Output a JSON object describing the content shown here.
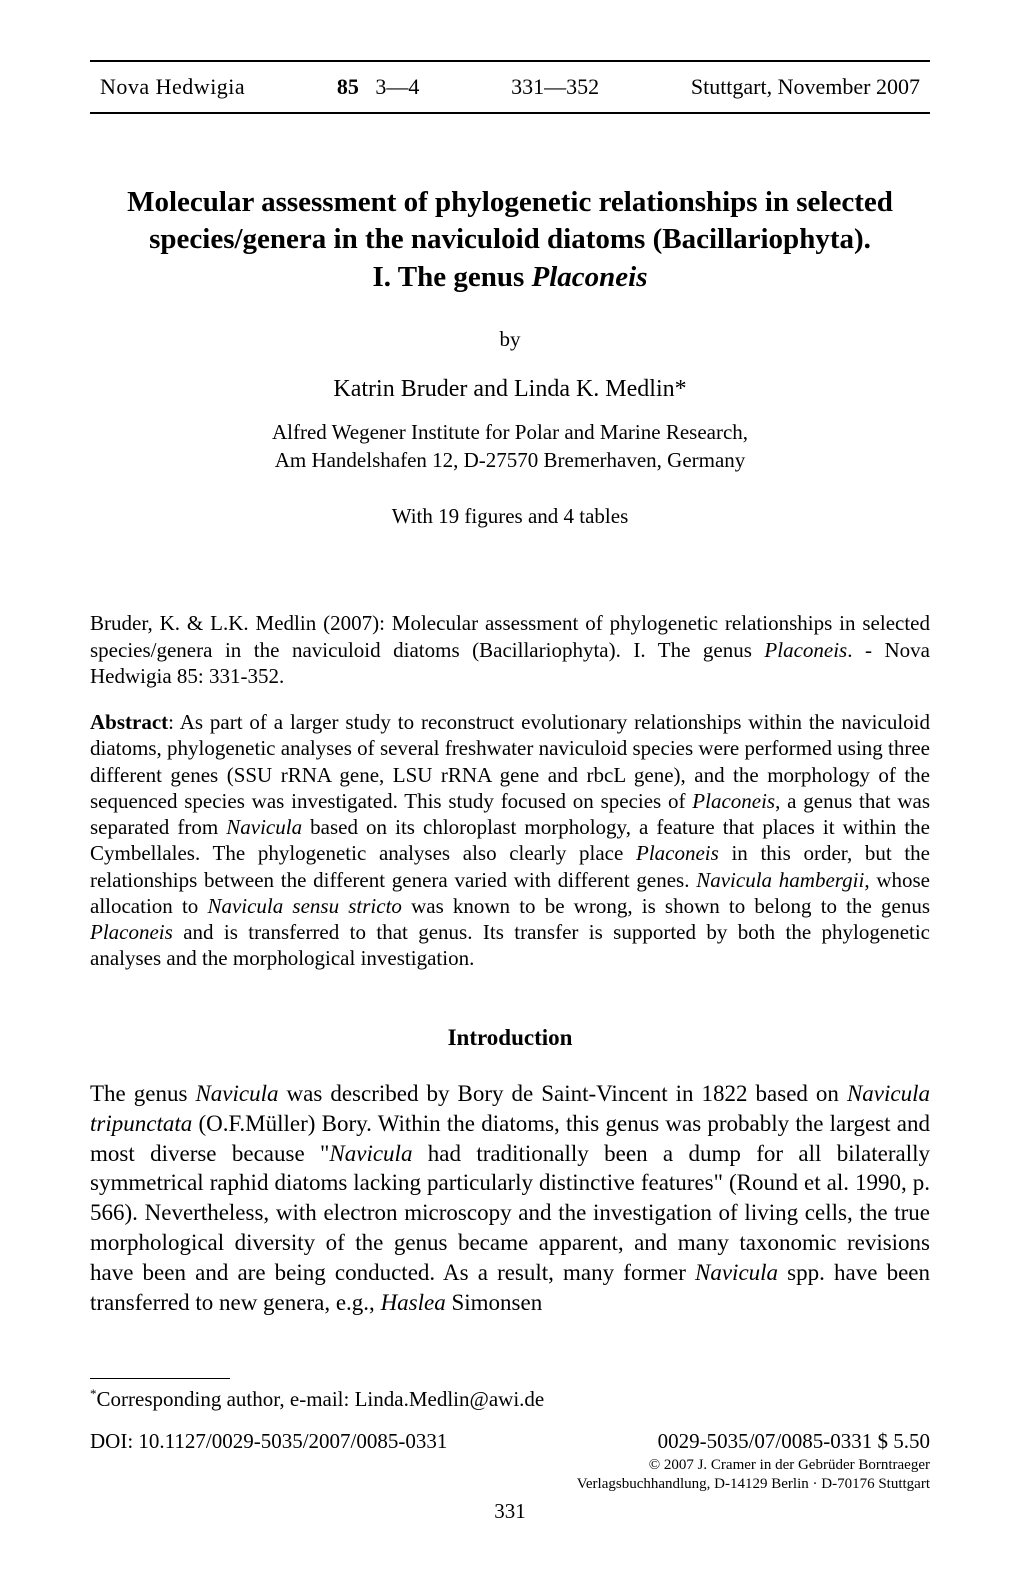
{
  "header": {
    "journal": "Nova Hedwigia",
    "volume": "85",
    "issue": "3—4",
    "pages": "331—352",
    "location_date": "Stuttgart, November 2007"
  },
  "title": {
    "line1": "Molecular assessment of phylogenetic relationships in selected species/genera in the naviculoid diatoms (Bacillariophyta).",
    "line2_prefix": "I. The genus ",
    "line2_italic": "Placoneis"
  },
  "by_label": "by",
  "authors": "Katrin Bruder and Linda K. Medlin*",
  "affiliation": {
    "line1": "Alfred Wegener Institute for Polar and Marine Research,",
    "line2": "Am Handelshafen 12, D-27570 Bremerhaven, Germany"
  },
  "figures_note": "With 19 figures and 4 tables",
  "citation": {
    "prefix": "Bruder, K. & L.K. Medlin (2007):  Molecular assessment of phylogenetic relationships in selected species/genera in the naviculoid diatoms (Bacillariophyta). I. The genus ",
    "italic1": "Placoneis",
    "suffix": ". - Nova Hedwigia 85: 331-352."
  },
  "abstract": {
    "label": "Abstract",
    "text_parts": [
      ": As part of a larger study to reconstruct evolutionary relationships within the naviculoid diatoms, phylogenetic analyses of several freshwater naviculoid species were performed using three different genes (SSU rRNA gene, LSU rRNA gene and rbcL gene), and the morphology of the sequenced species was investigated. This study focused on species of ",
      "Placoneis",
      ", a genus that was separated from ",
      "Navicula",
      " based on its chloroplast morphology, a feature that places it within the Cymbellales. The phylogenetic analyses also clearly place ",
      "Placoneis",
      " in this order, but the relationships between the different genera varied with different genes. ",
      "Navicula hambergii",
      ", whose allocation to ",
      "Navicula sensu stricto",
      " was known to be wrong, is shown to belong to the genus ",
      "Placoneis",
      " and is transferred to that genus. Its transfer is supported by both the phylogenetic analyses and the morphological investigation."
    ]
  },
  "section_heading": "Introduction",
  "body": {
    "parts": [
      "The genus ",
      "Navicula",
      " was described by Bory de Saint-Vincent in 1822 based on ",
      "Navicula tripunctata",
      " (O.F.Müller) Bory. Within the diatoms, this genus was probably the largest and most diverse because \"",
      "Navicula",
      " had traditionally been a dump for all bilaterally symmetrical raphid diatoms lacking particularly distinctive features\" (Round et al. 1990, p. 566). Nevertheless, with electron microscopy and the investigation of living cells, the true morphological diversity of the genus became apparent, and many taxonomic revisions have been and are being conducted. As a result, many former ",
      "Navicula",
      " spp. have been transferred to new genera, e.g., ",
      "Haslea",
      " Simonsen"
    ]
  },
  "footnote": {
    "marker": "*",
    "text": "Corresponding author, e-mail: Linda.Medlin@awi.de"
  },
  "doi": "DOI: 10.1127/0029-5035/2007/0085-0331",
  "issn_price": "0029-5035/07/0085-0331 $ 5.50",
  "copyright": {
    "line1": "© 2007 J. Cramer in der Gebrüder Borntraeger",
    "line2": "Verlagsbuchhandlung, D-14129 Berlin · D-70176 Stuttgart"
  },
  "page_number": "331"
}
